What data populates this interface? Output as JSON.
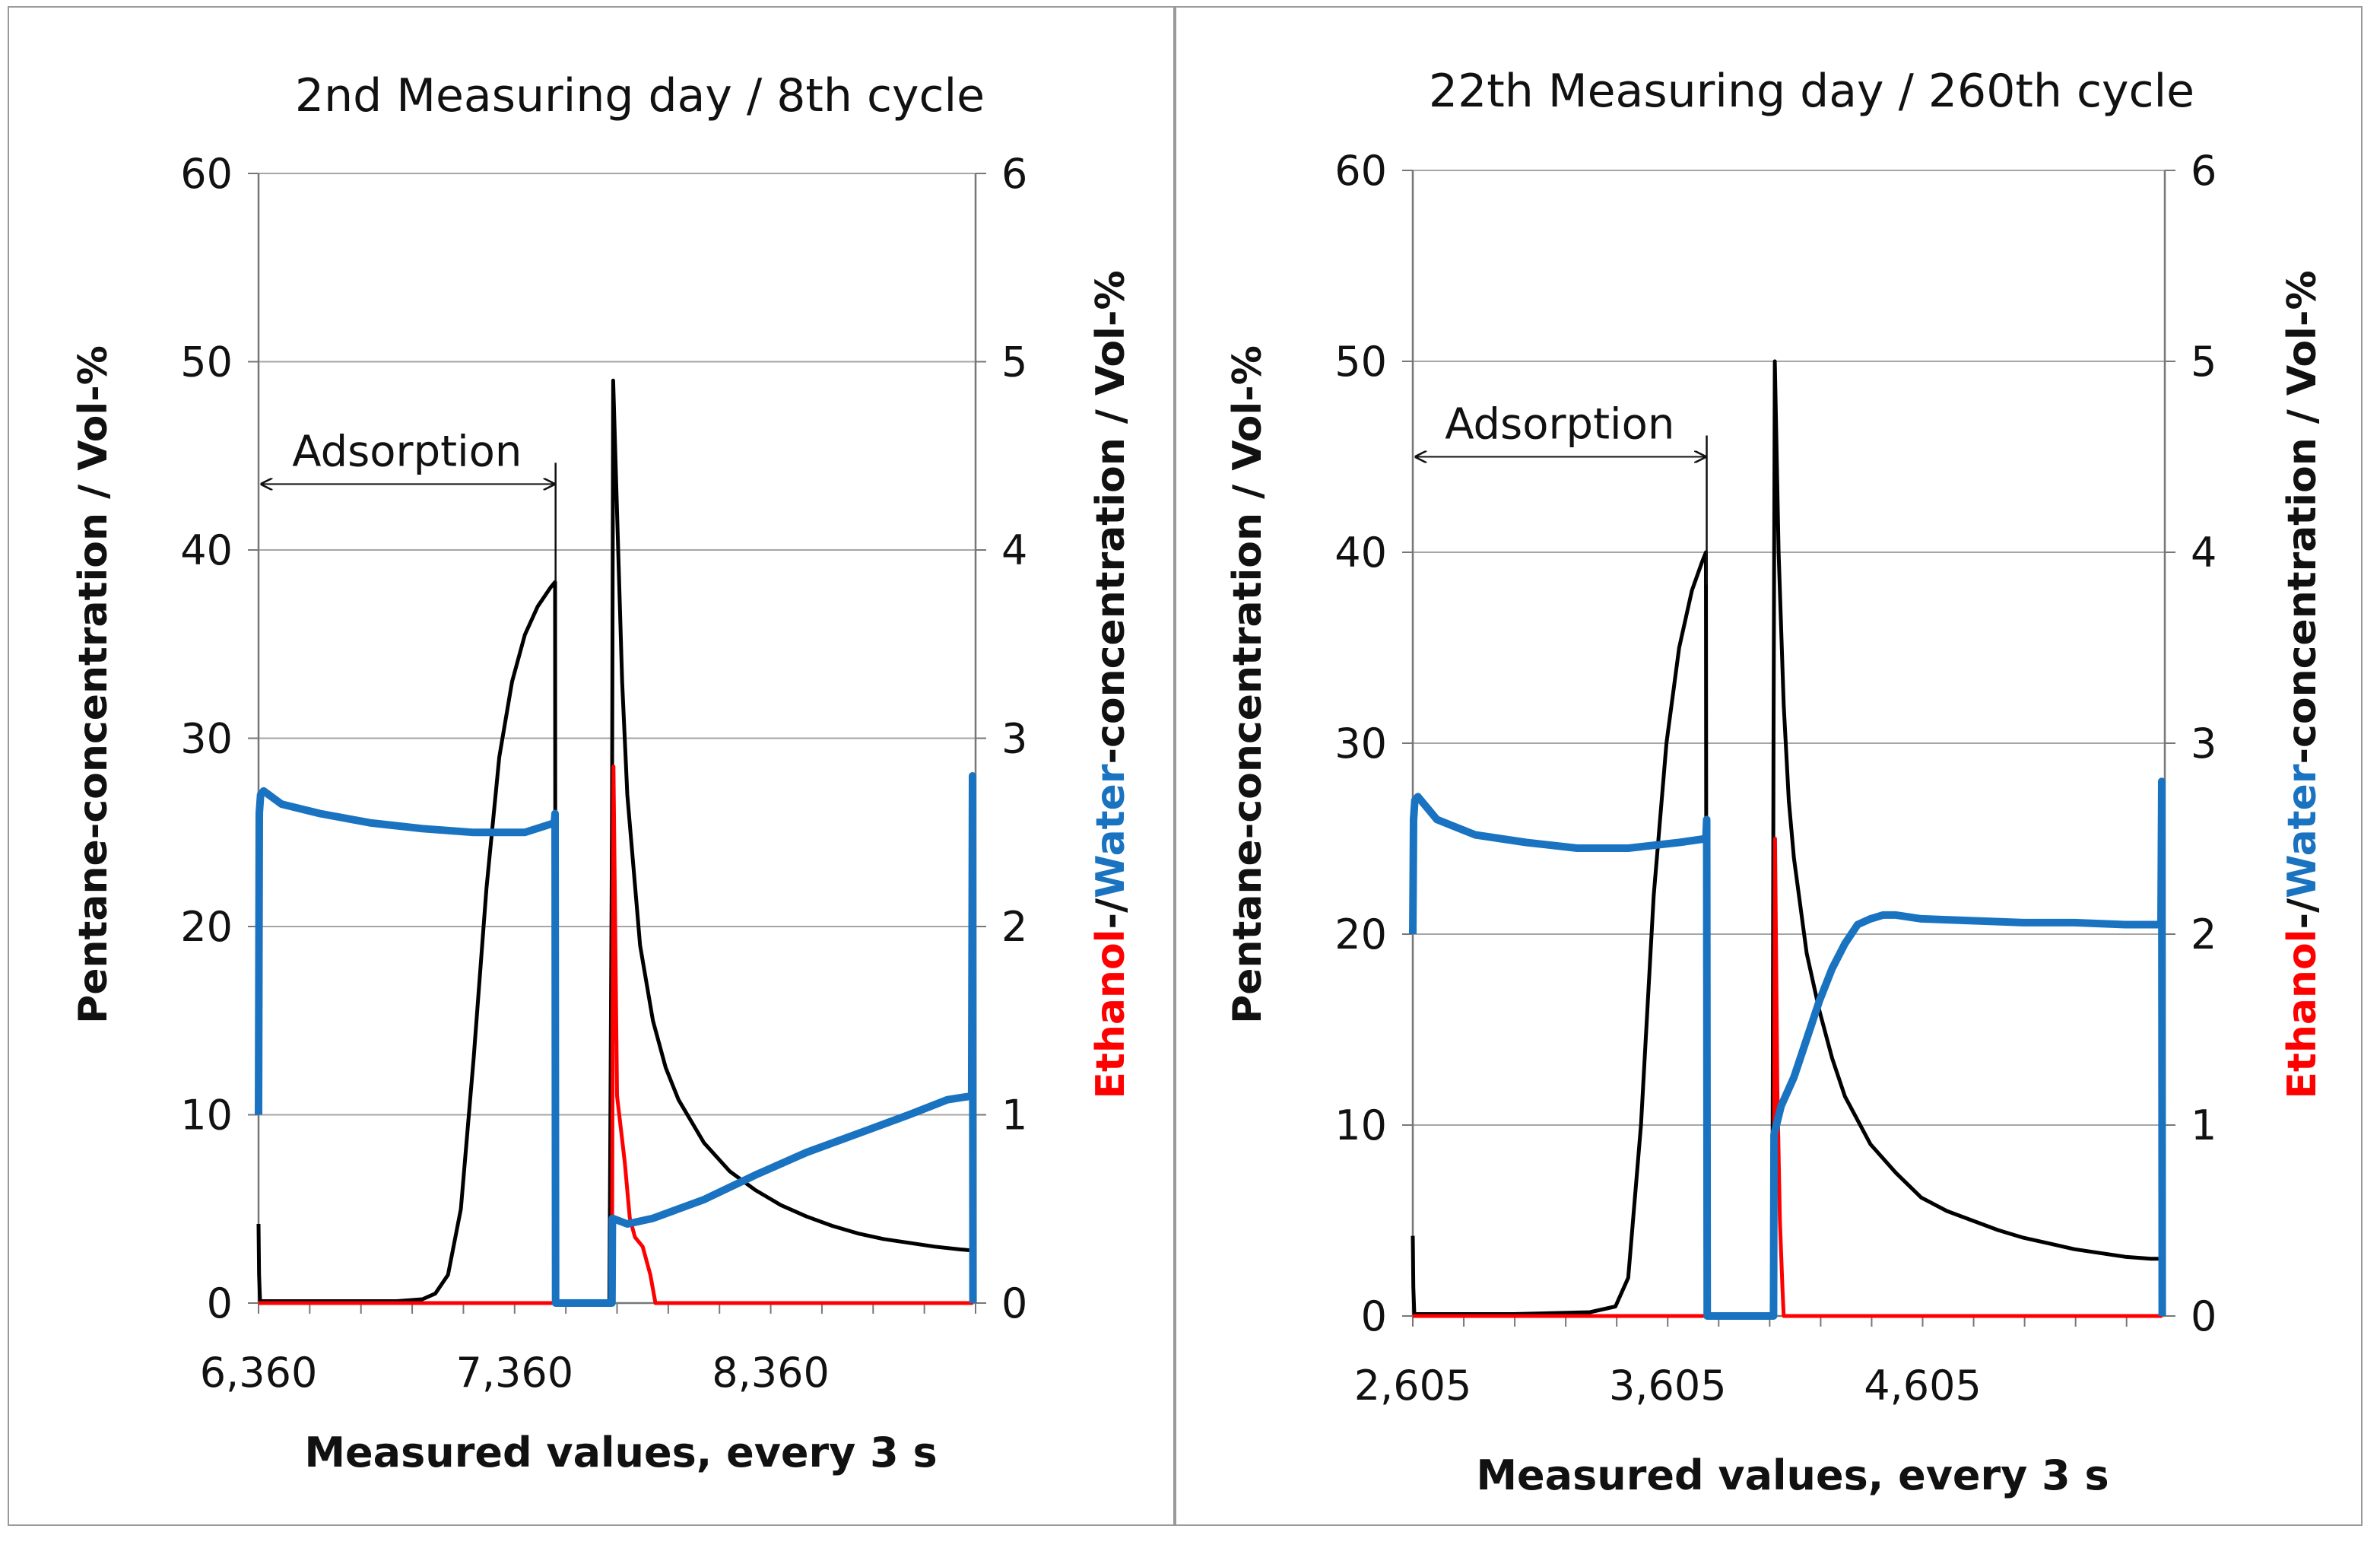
{
  "chart_data": [
    {
      "type": "line",
      "title": "2nd Measuring day / 8th cycle",
      "xlabel": "Measured  values, every 3 s",
      "ylabel_left": "Pentane-concentration  /  Vol-%",
      "ylabel_right": {
        "ethanol": "Ethanol",
        "sep": "-/",
        "water": "Water",
        "rest": "-concentration  /  Vol-%"
      },
      "xlim": [
        6360,
        9160
      ],
      "xticks": [
        "6,360",
        "7,360",
        "8,360"
      ],
      "xtick_values": [
        6360,
        7360,
        8360
      ],
      "ylim_left": [
        0,
        60
      ],
      "yticks_left": [
        "0",
        "10",
        "20",
        "30",
        "40",
        "50",
        "60"
      ],
      "ylim_right": [
        0,
        6
      ],
      "yticks_right": [
        "0",
        "1",
        "2",
        "3",
        "4",
        "5",
        "6"
      ],
      "annotation": {
        "text": "Adsorption",
        "x_start": 6360,
        "x_end": 7520,
        "y": 43.5
      },
      "series": [
        {
          "name": "Pentane",
          "axis": "left",
          "color": "#000000",
          "x": [
            6360,
            6362,
            6366,
            6700,
            6900,
            7000,
            7050,
            7100,
            7150,
            7200,
            7250,
            7300,
            7350,
            7400,
            7450,
            7500,
            7518,
            7520,
            7530,
            7730,
            7740,
            7745,
            7760,
            7780,
            7800,
            7850,
            7900,
            7950,
            8000,
            8100,
            8200,
            8300,
            8400,
            8500,
            8600,
            8700,
            8800,
            8900,
            9000,
            9100,
            9145,
            9148,
            9150
          ],
          "y": [
            4.2,
            1.5,
            0.1,
            0.1,
            0.1,
            0.2,
            0.5,
            1.5,
            5,
            13,
            22,
            29,
            33,
            35.5,
            37,
            38,
            38.3,
            0.1,
            0,
            0,
            25,
            49,
            42,
            33,
            27,
            19,
            15,
            12.5,
            10.8,
            8.5,
            7,
            6,
            5.2,
            4.6,
            4.1,
            3.7,
            3.4,
            3.2,
            3.0,
            2.85,
            2.8,
            0.5,
            0
          ]
        },
        {
          "name": "Ethanol",
          "axis": "right",
          "color": "#ff0000",
          "x": [
            6360,
            7740,
            7743,
            7746,
            7760,
            7790,
            7810,
            7830,
            7860,
            7890,
            7910,
            9150
          ],
          "y": [
            0,
            0,
            1.6,
            2.85,
            1.1,
            0.75,
            0.45,
            0.35,
            0.3,
            0.15,
            0,
            0
          ]
        },
        {
          "name": "Water",
          "axis": "right",
          "color": "#1a73c0",
          "x": [
            6360,
            6363,
            6368,
            6380,
            6450,
            6600,
            6800,
            7000,
            7200,
            7400,
            7515,
            7518,
            7520,
            7740,
            7742,
            7800,
            7900,
            8100,
            8300,
            8500,
            8700,
            8900,
            9050,
            9145,
            9148,
            9150
          ],
          "y": [
            1.0,
            2.6,
            2.7,
            2.72,
            2.65,
            2.6,
            2.55,
            2.52,
            2.5,
            2.5,
            2.55,
            2.6,
            0,
            0,
            0.45,
            0.42,
            0.45,
            0.55,
            0.68,
            0.8,
            0.9,
            1.0,
            1.08,
            1.1,
            2.8,
            0
          ]
        }
      ]
    },
    {
      "type": "line",
      "title": "22th Measuring day / 260th cycle",
      "xlabel": "Measured  values, every 3 s",
      "ylabel_left": "Pentane-concentration  /  Vol-%",
      "ylabel_right": {
        "ethanol": "Ethanol",
        "sep": "-/",
        "water": "Water",
        "rest": "-concentration  /  Vol-%"
      },
      "xlim": [
        2605,
        5555
      ],
      "xticks": [
        "2,605",
        "3,605",
        "4,605"
      ],
      "xtick_values": [
        2605,
        3605,
        4605
      ],
      "ylim_left": [
        0,
        60
      ],
      "yticks_left": [
        "0",
        "10",
        "20",
        "30",
        "40",
        "50",
        "60"
      ],
      "ylim_right": [
        0,
        6
      ],
      "yticks_right": [
        "0",
        "1",
        "2",
        "3",
        "4",
        "5",
        "6"
      ],
      "annotation": {
        "text": "Adsorption",
        "x_start": 2605,
        "x_end": 3758,
        "y": 45
      },
      "series": [
        {
          "name": "Pentane",
          "axis": "left",
          "color": "#000000",
          "x": [
            2605,
            2607,
            2611,
            3000,
            3300,
            3400,
            3450,
            3500,
            3550,
            3600,
            3650,
            3700,
            3740,
            3755,
            3758,
            3770,
            4015,
            4020,
            4025,
            4040,
            4060,
            4080,
            4100,
            4150,
            4200,
            4250,
            4300,
            4400,
            4500,
            4600,
            4700,
            4800,
            4900,
            5000,
            5100,
            5200,
            5300,
            5400,
            5500,
            5540,
            5543,
            5545
          ],
          "y": [
            4.2,
            1.5,
            0.1,
            0.1,
            0.2,
            0.5,
            2,
            10,
            22,
            30,
            35,
            38,
            39.5,
            40,
            0.1,
            0,
            0,
            30,
            50,
            40,
            32,
            27,
            24,
            19,
            16,
            13.5,
            11.5,
            9,
            7.5,
            6.2,
            5.5,
            5,
            4.5,
            4.1,
            3.8,
            3.5,
            3.3,
            3.1,
            3.0,
            3.0,
            0.5,
            0
          ]
        },
        {
          "name": "Ethanol",
          "axis": "right",
          "color": "#ff0000",
          "x": [
            2605,
            4020,
            4023,
            4026,
            4035,
            4045,
            4055,
            4060,
            5545
          ],
          "y": [
            0,
            0,
            1.2,
            2.5,
            1.2,
            0.5,
            0.15,
            0,
            0
          ]
        },
        {
          "name": "Water",
          "axis": "right",
          "color": "#1a73c0",
          "x": [
            2605,
            2608,
            2613,
            2625,
            2700,
            2850,
            3050,
            3250,
            3450,
            3650,
            3755,
            3758,
            3760,
            4020,
            4022,
            4050,
            4100,
            4150,
            4200,
            4250,
            4300,
            4350,
            4400,
            4450,
            4500,
            4600,
            4800,
            5000,
            5200,
            5400,
            5540,
            5543,
            5545
          ],
          "y": [
            2.0,
            2.6,
            2.7,
            2.72,
            2.6,
            2.52,
            2.48,
            2.45,
            2.45,
            2.48,
            2.5,
            2.6,
            0,
            0,
            0.95,
            1.1,
            1.25,
            1.45,
            1.65,
            1.82,
            1.95,
            2.05,
            2.08,
            2.1,
            2.1,
            2.08,
            2.07,
            2.06,
            2.06,
            2.05,
            2.05,
            2.8,
            0
          ]
        }
      ]
    }
  ]
}
